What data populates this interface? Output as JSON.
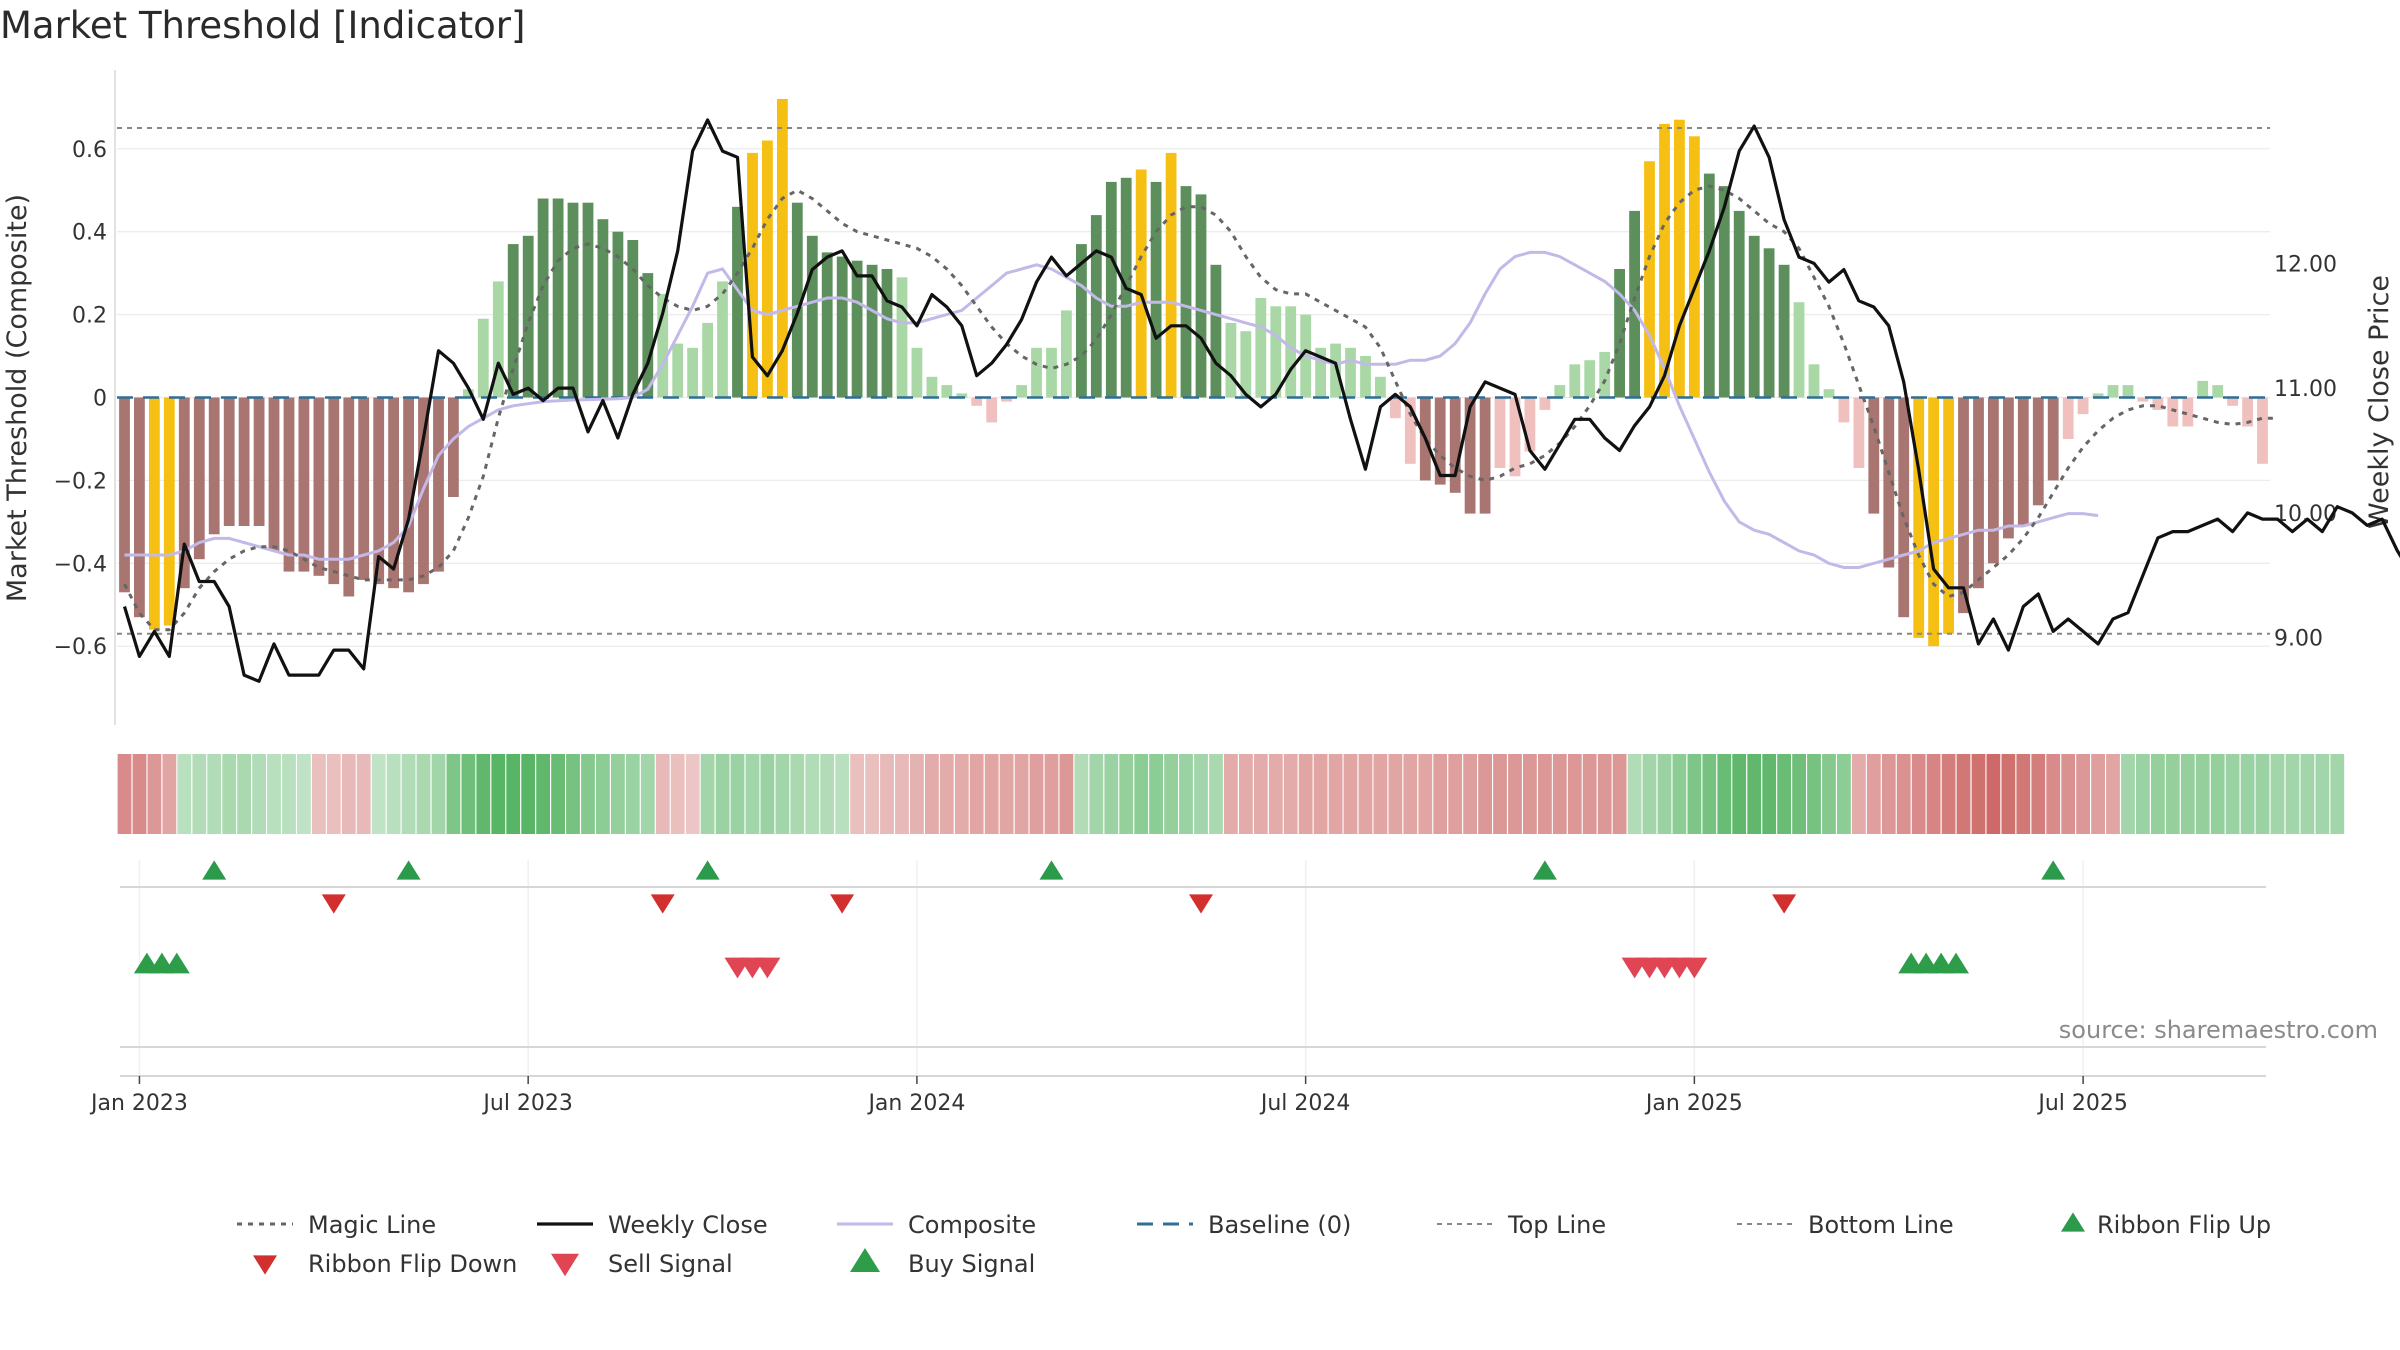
{
  "title": "Market Threshold [Indicator]",
  "source": "source: sharemaestro.com",
  "chart_data": {
    "type": "bar",
    "title": "Market Threshold [Indicator]",
    "ylabel_left": "Market Threshold (Composite)",
    "ylabel_right": "Weekly Close Price",
    "ylim_left": [
      -0.79,
      0.79
    ],
    "ylim_right": [
      8.3,
      13.55
    ],
    "left_ticks": [
      {
        "v": 0.6,
        "label": "0.6"
      },
      {
        "v": 0.4,
        "label": "0.4"
      },
      {
        "v": 0.2,
        "label": "0.2"
      },
      {
        "v": 0,
        "label": "0"
      },
      {
        "v": -0.2,
        "label": "−0.2"
      },
      {
        "v": -0.4,
        "label": "−0.4"
      },
      {
        "v": -0.6,
        "label": "−0.6"
      }
    ],
    "right_ticks": [
      {
        "v": 12,
        "label": "12.00"
      },
      {
        "v": 11,
        "label": "11.00"
      },
      {
        "v": 10,
        "label": "10.00"
      },
      {
        "v": 9,
        "label": "9.00"
      }
    ],
    "x_ticks": [
      {
        "i": 1,
        "label": "Jan 2023"
      },
      {
        "i": 27,
        "label": "Jul 2023"
      },
      {
        "i": 53,
        "label": "Jan 2024"
      },
      {
        "i": 79,
        "label": "Jul 2024"
      },
      {
        "i": 105,
        "label": "Jan 2025"
      },
      {
        "i": 131,
        "label": "Jul 2025"
      }
    ],
    "top_line": 0.65,
    "bottom_line": -0.57,
    "composite_bars": [
      -0.47,
      -0.53,
      -0.56,
      -0.55,
      -0.46,
      -0.39,
      -0.33,
      -0.31,
      -0.31,
      -0.31,
      -0.37,
      -0.42,
      -0.42,
      -0.43,
      -0.45,
      -0.48,
      -0.44,
      -0.45,
      -0.46,
      -0.47,
      -0.45,
      -0.42,
      -0.24,
      0.02,
      0.19,
      0.28,
      0.37,
      0.39,
      0.48,
      0.48,
      0.47,
      0.47,
      0.43,
      0.4,
      0.38,
      0.3,
      0.25,
      0.13,
      0.12,
      0.18,
      0.28,
      0.46,
      0.59,
      0.62,
      0.72,
      0.47,
      0.39,
      0.35,
      0.34,
      0.33,
      0.32,
      0.31,
      0.29,
      0.12,
      0.05,
      0.03,
      0.01,
      -0.02,
      -0.06,
      -0.01,
      0.03,
      0.12,
      0.12,
      0.21,
      0.37,
      0.44,
      0.52,
      0.53,
      0.55,
      0.52,
      0.59,
      0.51,
      0.49,
      0.32,
      0.18,
      0.16,
      0.24,
      0.22,
      0.22,
      0.2,
      0.12,
      0.13,
      0.12,
      0.1,
      0.05,
      -0.05,
      -0.16,
      -0.2,
      -0.21,
      -0.23,
      -0.28,
      -0.28,
      -0.17,
      -0.19,
      -0.13,
      -0.03,
      0.03,
      0.08,
      0.09,
      0.11,
      0.31,
      0.45,
      0.57,
      0.66,
      0.67,
      0.63,
      0.54,
      0.51,
      0.45,
      0.39,
      0.36,
      0.32,
      0.23,
      0.08,
      0.02,
      -0.06,
      -0.17,
      -0.28,
      -0.41,
      -0.53,
      -0.58,
      -0.6,
      -0.57,
      -0.52,
      -0.46,
      -0.4,
      -0.34,
      -0.31,
      -0.26,
      -0.2,
      -0.1,
      -0.04,
      0.01,
      0.03,
      0.03,
      -0.01,
      -0.03,
      -0.07,
      -0.07,
      0.04,
      0.03,
      -0.02,
      -0.07,
      -0.16
    ],
    "weekly_close": [
      9.25,
      8.85,
      9.05,
      8.85,
      9.75,
      9.45,
      9.45,
      9.25,
      8.7,
      8.65,
      8.95,
      8.7,
      8.7,
      8.7,
      8.9,
      8.9,
      8.75,
      9.65,
      9.55,
      9.95,
      10.6,
      11.3,
      11.2,
      11.0,
      10.75,
      11.2,
      10.95,
      11.0,
      10.9,
      11.0,
      11.0,
      10.65,
      10.9,
      10.6,
      10.95,
      11.2,
      11.6,
      12.1,
      12.9,
      13.15,
      12.9,
      12.85,
      11.25,
      11.1,
      11.3,
      11.6,
      11.95,
      12.05,
      12.1,
      11.9,
      11.9,
      11.7,
      11.65,
      11.5,
      11.75,
      11.65,
      11.5,
      11.1,
      11.2,
      11.35,
      11.55,
      11.85,
      12.05,
      11.9,
      12.0,
      12.1,
      12.05,
      11.8,
      11.75,
      11.4,
      11.5,
      11.5,
      11.4,
      11.2,
      11.1,
      10.95,
      10.85,
      10.95,
      11.15,
      11.3,
      11.25,
      11.2,
      10.75,
      10.35,
      10.85,
      10.95,
      10.85,
      10.6,
      10.3,
      10.3,
      10.85,
      11.05,
      11.0,
      10.95,
      10.5,
      10.35,
      10.55,
      10.75,
      10.75,
      10.6,
      10.5,
      10.7,
      10.85,
      11.1,
      11.5,
      11.8,
      12.1,
      12.45,
      12.9,
      13.1,
      12.85,
      12.35,
      12.05,
      12.0,
      11.85,
      11.95,
      11.7,
      11.65,
      11.5,
      11.05,
      10.35,
      9.55,
      9.4,
      9.4,
      8.95,
      9.15,
      8.9,
      9.25,
      9.35,
      9.05,
      9.15,
      9.05,
      8.95,
      9.15,
      9.2,
      9.5,
      9.8,
      9.85,
      9.85,
      9.9,
      9.95,
      9.85,
      10.0,
      9.95,
      9.95,
      9.85,
      9.95,
      9.85,
      10.05,
      10.0,
      9.9,
      9.95,
      9.7,
      9.5
    ],
    "composite_line": [
      -0.38,
      -0.38,
      -0.38,
      -0.38,
      -0.37,
      -0.35,
      -0.34,
      -0.34,
      -0.35,
      -0.36,
      -0.37,
      -0.38,
      -0.38,
      -0.39,
      -0.39,
      -0.39,
      -0.38,
      -0.37,
      -0.35,
      -0.31,
      -0.22,
      -0.14,
      -0.1,
      -0.07,
      -0.05,
      -0.03,
      -0.02,
      -0.015,
      -0.01,
      -0.008,
      -0.006,
      -0.005,
      -0.004,
      -0.003,
      0.0,
      0.02,
      0.08,
      0.15,
      0.22,
      0.3,
      0.31,
      0.26,
      0.21,
      0.2,
      0.21,
      0.22,
      0.23,
      0.24,
      0.24,
      0.23,
      0.21,
      0.19,
      0.18,
      0.18,
      0.19,
      0.2,
      0.21,
      0.24,
      0.27,
      0.3,
      0.31,
      0.32,
      0.31,
      0.29,
      0.27,
      0.24,
      0.22,
      0.22,
      0.23,
      0.23,
      0.23,
      0.22,
      0.21,
      0.2,
      0.19,
      0.18,
      0.17,
      0.15,
      0.12,
      0.1,
      0.09,
      0.08,
      0.09,
      0.08,
      0.08,
      0.08,
      0.09,
      0.09,
      0.1,
      0.13,
      0.18,
      0.25,
      0.31,
      0.34,
      0.35,
      0.35,
      0.34,
      0.32,
      0.3,
      0.28,
      0.25,
      0.21,
      0.15,
      0.07,
      -0.02,
      -0.1,
      -0.18,
      -0.25,
      -0.3,
      -0.32,
      -0.33,
      -0.35,
      -0.37,
      -0.38,
      -0.4,
      -0.41,
      -0.41,
      -0.4,
      -0.39,
      -0.38,
      -0.37,
      -0.35,
      -0.34,
      -0.33,
      -0.32,
      -0.32,
      -0.31,
      -0.31,
      -0.3,
      -0.29,
      -0.28,
      -0.28,
      -0.285
    ],
    "magic_line": [
      -0.45,
      -0.52,
      -0.56,
      -0.56,
      -0.52,
      -0.46,
      -0.42,
      -0.39,
      -0.37,
      -0.36,
      -0.36,
      -0.37,
      -0.39,
      -0.41,
      -0.42,
      -0.43,
      -0.44,
      -0.44,
      -0.44,
      -0.44,
      -0.43,
      -0.41,
      -0.37,
      -0.29,
      -0.19,
      -0.05,
      0.07,
      0.18,
      0.27,
      0.33,
      0.36,
      0.37,
      0.36,
      0.34,
      0.31,
      0.27,
      0.24,
      0.22,
      0.21,
      0.22,
      0.25,
      0.3,
      0.36,
      0.43,
      0.48,
      0.5,
      0.48,
      0.45,
      0.42,
      0.4,
      0.39,
      0.38,
      0.37,
      0.36,
      0.34,
      0.31,
      0.27,
      0.22,
      0.17,
      0.13,
      0.1,
      0.08,
      0.07,
      0.08,
      0.1,
      0.14,
      0.2,
      0.27,
      0.34,
      0.4,
      0.44,
      0.46,
      0.46,
      0.44,
      0.4,
      0.34,
      0.29,
      0.26,
      0.25,
      0.25,
      0.23,
      0.21,
      0.19,
      0.17,
      0.12,
      0.04,
      -0.04,
      -0.1,
      -0.14,
      -0.17,
      -0.19,
      -0.2,
      -0.19,
      -0.17,
      -0.16,
      -0.14,
      -0.11,
      -0.07,
      -0.02,
      0.04,
      0.13,
      0.24,
      0.34,
      0.42,
      0.47,
      0.5,
      0.51,
      0.5,
      0.48,
      0.45,
      0.42,
      0.4,
      0.36,
      0.29,
      0.22,
      0.13,
      0.03,
      -0.07,
      -0.18,
      -0.29,
      -0.38,
      -0.45,
      -0.48,
      -0.47,
      -0.44,
      -0.41,
      -0.38,
      -0.34,
      -0.29,
      -0.23,
      -0.17,
      -0.12,
      -0.08,
      -0.05,
      -0.03,
      -0.02,
      -0.02,
      -0.03,
      -0.04,
      -0.05,
      -0.06,
      -0.065,
      -0.06,
      -0.05,
      -0.05
    ],
    "ribbon": [
      -0.55,
      -0.55,
      -0.45,
      -0.35,
      0.15,
      0.2,
      0.2,
      0.25,
      0.25,
      0.2,
      0.15,
      0.15,
      0.1,
      -0.15,
      -0.15,
      -0.2,
      -0.2,
      0.1,
      0.15,
      0.2,
      0.25,
      0.3,
      0.55,
      0.65,
      0.75,
      0.8,
      0.8,
      0.8,
      0.75,
      0.7,
      0.6,
      0.5,
      0.45,
      0.4,
      0.35,
      0.3,
      -0.2,
      -0.15,
      -0.1,
      0.3,
      0.35,
      0.35,
      0.3,
      0.35,
      0.3,
      0.25,
      0.2,
      0.2,
      0.15,
      -0.15,
      -0.15,
      -0.2,
      -0.2,
      -0.25,
      -0.3,
      -0.3,
      -0.3,
      -0.35,
      -0.35,
      -0.35,
      -0.35,
      -0.4,
      -0.4,
      -0.45,
      0.2,
      0.3,
      0.35,
      0.4,
      0.45,
      0.45,
      0.4,
      0.35,
      0.3,
      0.25,
      -0.3,
      -0.3,
      -0.3,
      -0.3,
      -0.3,
      -0.35,
      -0.35,
      -0.35,
      -0.35,
      -0.35,
      -0.35,
      -0.35,
      -0.35,
      -0.35,
      -0.4,
      -0.4,
      -0.4,
      -0.45,
      -0.45,
      -0.45,
      -0.45,
      -0.45,
      -0.45,
      -0.45,
      -0.45,
      -0.45,
      -0.45,
      0.2,
      0.3,
      0.35,
      0.45,
      0.55,
      0.6,
      0.7,
      0.75,
      0.75,
      0.75,
      0.7,
      0.65,
      0.6,
      0.5,
      0.45,
      -0.3,
      -0.4,
      -0.45,
      -0.5,
      -0.55,
      -0.6,
      -0.65,
      -0.7,
      -0.75,
      -0.8,
      -0.75,
      -0.7,
      -0.65,
      -0.55,
      -0.5,
      -0.45,
      -0.4,
      -0.35,
      0.3,
      0.35,
      0.4,
      0.4,
      0.4,
      0.4,
      0.4,
      0.35,
      0.35,
      0.35,
      0.3,
      0.3,
      0.3,
      0.3,
      0.3
    ],
    "ribbon_flip_up": [
      6,
      19,
      39,
      62,
      95,
      129
    ],
    "ribbon_flip_down": [
      14,
      36,
      48,
      72,
      111
    ],
    "buy_signals": [
      1.5,
      2.5,
      3.5,
      119.5,
      120.5,
      121.5,
      122.5
    ],
    "sell_signals": [
      41,
      42,
      43,
      101,
      102,
      103,
      104,
      105
    ],
    "legend": [
      {
        "key": "magic",
        "label": "Magic Line"
      },
      {
        "key": "close",
        "label": "Weekly Close"
      },
      {
        "key": "composite",
        "label": "Composite"
      },
      {
        "key": "baseline",
        "label": "Baseline (0)"
      },
      {
        "key": "top",
        "label": "Top Line"
      },
      {
        "key": "bottom",
        "label": "Bottom Line"
      },
      {
        "key": "flipup",
        "label": "Ribbon Flip Up"
      },
      {
        "key": "flipdown",
        "label": "Ribbon Flip Down"
      },
      {
        "key": "sell",
        "label": "Sell Signal"
      },
      {
        "key": "buy",
        "label": "Buy Signal"
      }
    ],
    "colors": {
      "dark_green": "#5c8f5c",
      "light_green": "#a9d8a6",
      "dark_red": "#a97571",
      "light_red": "#efc0bd",
      "extreme": "#f6bf13",
      "close": "#111111",
      "composite": "#c3b9e8",
      "magic": "#666666",
      "baseline": "#2f6f96",
      "flip_up": "#2c9a4b",
      "flip_down": "#d2302f",
      "sell": "#e04554",
      "buy": "#2e9d49"
    }
  }
}
